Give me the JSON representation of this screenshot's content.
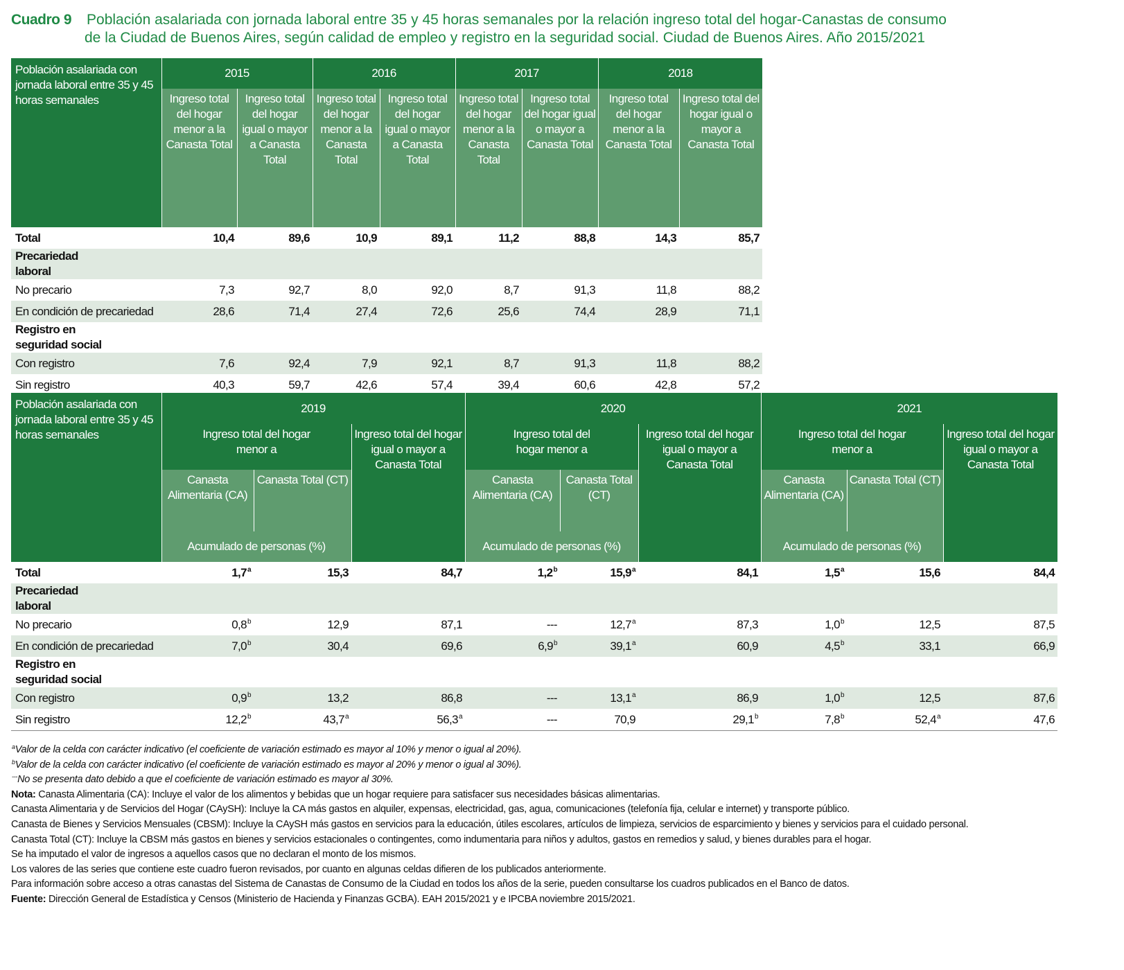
{
  "title": {
    "label": "Cuadro 9",
    "lines": [
      "Población asalariada con jornada laboral entre 35 y 45 horas semanales por la relación ingreso total del hogar-Canastas de consumo",
      "de la Ciudad de Buenos Aires, según calidad de empleo y registro en la seguridad social. Ciudad de Buenos Aires. Año 2015/2021"
    ]
  },
  "table1": {
    "corner": "Población asalariada con jornada laboral entre 35 y 45 horas semanales",
    "years": [
      {
        "year": "2015",
        "subheaders": [
          "Ingreso total del hogar menor a la Canasta Total",
          "Ingreso total del hogar igual o mayor a Canasta Total"
        ]
      },
      {
        "year": "2016",
        "subheaders": [
          "Ingreso total del hogar menor a la Canasta Total",
          "Ingreso total del hogar igual o mayor a Canasta Total"
        ]
      },
      {
        "year": "2017",
        "subheaders": [
          "Ingreso total del hogar menor a la Canasta Total",
          "Ingreso total del hogar igual o mayor a Canasta Total"
        ]
      },
      {
        "year": "2018",
        "subheaders": [
          "Ingreso total del hogar menor a la Canasta Total",
          "Ingreso total del hogar igual o mayor a Canasta Total"
        ]
      }
    ],
    "rows": [
      {
        "label": "Total",
        "cells": [
          "10,4",
          "89,6",
          "10,9",
          "89,1",
          "11,2",
          "88,8",
          "14,3",
          "85,7"
        ]
      },
      {
        "label": "Precariedad laboral"
      },
      {
        "label": "No precario",
        "cells": [
          "7,3",
          "92,7",
          "8,0",
          "92,0",
          "8,7",
          "91,3",
          "11,8",
          "88,2"
        ]
      },
      {
        "label": "En condición de precariedad",
        "cells": [
          "28,6",
          "71,4",
          "27,4",
          "72,6",
          "25,6",
          "74,4",
          "28,9",
          "71,1"
        ]
      },
      {
        "label": "Registro en seguridad social"
      },
      {
        "label": "Con registro",
        "cells": [
          "7,6",
          "92,4",
          "7,9",
          "92,1",
          "8,7",
          "91,3",
          "11,8",
          "88,2"
        ]
      },
      {
        "label": "Sin registro",
        "cells": [
          "40,3",
          "59,7",
          "42,6",
          "57,4",
          "39,4",
          "60,6",
          "42,8",
          "57,2"
        ]
      }
    ]
  },
  "table2": {
    "corner": "Población asalariada con jornada laboral entre 35 y 45 horas semanales",
    "years": [
      {
        "year": "2019",
        "lower": "Ingreso total del hogar menor a",
        "sub": [
          "Canasta Alimentaria (CA)",
          "Canasta Total (CT)"
        ],
        "accum": "Acumulado de personas (%)",
        "upper": "Ingreso total del hogar igual o mayor a Canasta Total"
      },
      {
        "year": "2020",
        "lower": "Ingreso total del hogar menor a",
        "sub": [
          "Canasta Alimentaria (CA)",
          "Canasta Total (CT)"
        ],
        "accum": "Acumulado de personas (%)",
        "upper": "Ingreso total del hogar igual o mayor a Canasta Total"
      },
      {
        "year": "2021",
        "lower": "Ingreso total del hogar menor a",
        "sub": [
          "Canasta Alimentaria (CA)",
          "Canasta Total (CT)"
        ],
        "accum": "Acumulado de personas (%)",
        "upper": "Ingreso total del hogar igual o mayor a Canasta Total"
      }
    ],
    "rows": [
      {
        "label": "Total",
        "cells": [
          {
            "value": "1,7",
            "note": "a"
          },
          "15,3",
          "84,7",
          {
            "value": "1,2",
            "note": "b"
          },
          {
            "value": "15,9",
            "note": "a"
          },
          "84,1",
          {
            "value": "1,5",
            "note": "a"
          },
          "15,6",
          "84,4"
        ]
      },
      {
        "label": "Precariedad laboral"
      },
      {
        "label": "No precario",
        "cells": [
          {
            "value": "0,8",
            "note": "b"
          },
          "12,9",
          "87,1",
          "---",
          {
            "value": "12,7",
            "note": "a"
          },
          "87,3",
          {
            "value": "1,0",
            "note": "b"
          },
          "12,5",
          "87,5"
        ]
      },
      {
        "label": "En condición de precariedad",
        "cells": [
          {
            "value": "7,0",
            "note": "b"
          },
          "30,4",
          "69,6",
          {
            "value": "6,9",
            "note": "b"
          },
          {
            "value": "39,1",
            "note": "a"
          },
          "60,9",
          {
            "value": "4,5",
            "note": "b"
          },
          "33,1",
          "66,9"
        ]
      },
      {
        "label": "Registro en seguridad social"
      },
      {
        "label": "Con registro",
        "cells": [
          {
            "value": "0,9",
            "note": "b"
          },
          "13,2",
          "86,8",
          "---",
          {
            "value": "13,1",
            "note": "a"
          },
          "86,9",
          {
            "value": "1,0",
            "note": "b"
          },
          "12,5",
          "87,6"
        ]
      },
      {
        "label": "Sin registro",
        "cells": [
          {
            "value": "12,2",
            "note": "b"
          },
          {
            "value": "43,7",
            "note": "a"
          },
          {
            "value": "56,3",
            "note": "a"
          },
          "---",
          "70,9",
          {
            "value": "29,1",
            "note": "b"
          },
          {
            "value": "7,8",
            "note": "b"
          },
          {
            "value": "52,4",
            "note": "a"
          },
          "47,6"
        ]
      }
    ]
  },
  "footnotes": [
    {
      "mark": "a",
      "text": "Valor de la celda con carácter indicativo (el coeficiente de variación estimado es mayor al 10% y menor o igual al 20%)."
    },
    {
      "mark": "b",
      "text": "Valor de la celda con carácter indicativo (el coeficiente de variación estimado es mayor al 20% y menor o igual al 30%)."
    },
    {
      "mark": "---",
      "text": "No se presenta dato debido a que el coeficiente de variación estimado es mayor al 30%."
    }
  ],
  "notes": [
    {
      "bold": "Nota:",
      "text": "Canasta Alimentaria (CA): Incluye el valor de los alimentos y bebidas que un hogar requiere para satisfacer sus necesidades básicas alimentarias."
    },
    {
      "text": "Canasta Alimentaria y de Servicios del Hogar (CAySH): Incluye la CA más gastos en alquiler, expensas, electricidad, gas, agua, comunicaciones (telefonía fija, celular e internet) y transporte público."
    },
    {
      "text": "Canasta de Bienes y Servicios Mensuales (CBSM): Incluye la CAySH más gastos en servicios para la educación, útiles escolares, artículos de limpieza, servicios de esparcimiento y bienes y servicios para el cuidado personal."
    },
    {
      "text": "Canasta Total (CT): Incluye la CBSM más gastos en bienes y servicios estacionales o contingentes, como indumentaria para niños y adultos, gastos en remedios y salud, y bienes durables para el hogar."
    },
    {
      "text": "Se ha imputado el valor de ingresos a aquellos casos que no declaran el monto de los mismos."
    },
    {
      "text": "Los valores de las series que contiene este cuadro fueron revisados, por cuanto en algunas celdas difieren de los publicados anteriormente."
    },
    {
      "text": "Para información sobre acceso a otras canastas del Sistema de Canastas de Consumo de la Ciudad en todos los años de la serie, pueden consultarse los cuadros publicados en el Banco de datos."
    },
    {
      "bold": "Fuente:",
      "text": "Dirección General de Estadística y Censos (Ministerio de Hacienda y Finanzas GCBA). EAH 2015/2021 y e IPCBA noviembre 2015/2021."
    }
  ]
}
